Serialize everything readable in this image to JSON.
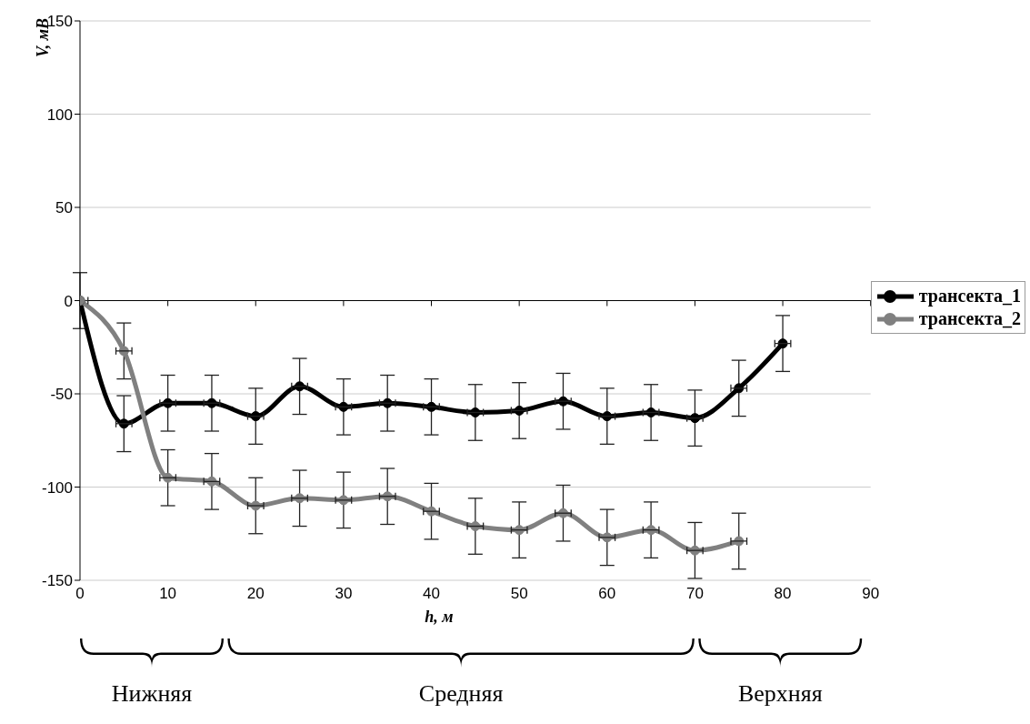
{
  "chart_data": {
    "type": "line",
    "xlabel": "h, м",
    "ylabel": "V, мВ",
    "xlim": [
      0,
      90
    ],
    "xticks": [
      0,
      10,
      20,
      30,
      40,
      50,
      60,
      70,
      80,
      90
    ],
    "ylim": [
      -150,
      150
    ],
    "yticks": [
      -150,
      -100,
      -50,
      0,
      50,
      100,
      150
    ],
    "grid": "y",
    "legend": "right",
    "marker": "circle",
    "line_style": "solid",
    "series": [
      {
        "name": "трансекта_1",
        "color": "#000000",
        "x": [
          0,
          5,
          10,
          15,
          20,
          25,
          30,
          35,
          40,
          45,
          50,
          55,
          60,
          65,
          70,
          75,
          80
        ],
        "values": [
          0,
          -66,
          -55,
          -55,
          -62,
          -46,
          -57,
          -55,
          -57,
          -60,
          -59,
          -54,
          -62,
          -60,
          -63,
          -47,
          -23
        ],
        "errors": [
          15,
          15,
          15,
          15,
          15,
          15,
          15,
          15,
          15,
          15,
          15,
          15,
          15,
          15,
          15,
          15,
          15
        ],
        "xerrors": [
          1,
          1,
          1,
          1,
          1,
          1,
          1,
          1,
          1,
          1,
          1,
          1,
          1,
          1,
          1,
          1,
          1
        ]
      },
      {
        "name": "трансекта_2",
        "color": "#808080",
        "x": [
          0,
          5,
          10,
          15,
          20,
          25,
          30,
          35,
          40,
          45,
          50,
          55,
          60,
          65,
          70,
          75
        ],
        "values": [
          0,
          -27,
          -95,
          -97,
          -110,
          -106,
          -107,
          -105,
          -113,
          -121,
          -123,
          -114,
          -127,
          -123,
          -134,
          -129
        ],
        "errors": [
          null,
          15,
          15,
          15,
          15,
          15,
          15,
          15,
          15,
          15,
          15,
          15,
          15,
          15,
          15,
          15
        ],
        "xerrors": [
          null,
          1,
          1,
          1,
          1,
          1,
          1,
          1,
          1,
          1,
          1,
          1,
          1,
          1,
          1,
          1
        ]
      }
    ],
    "annotations": [
      "Нижняя",
      "Средняя",
      "Верхняя"
    ]
  }
}
